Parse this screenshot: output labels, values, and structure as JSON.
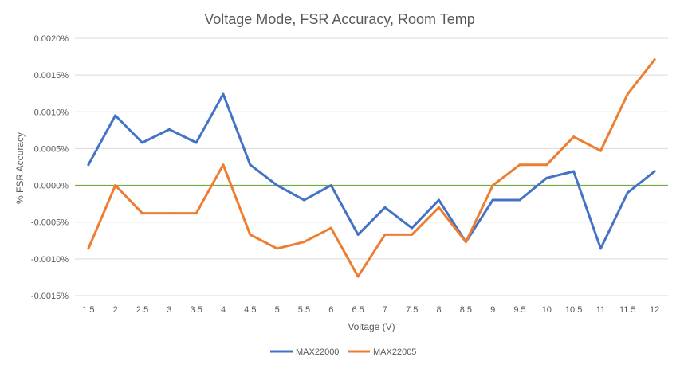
{
  "chart_data": {
    "type": "line",
    "title": "Voltage Mode, FSR Accuracy, Room Temp",
    "xlabel": "Voltage (V)",
    "ylabel": "% FSR Accuracy",
    "categories": [
      "1.5",
      "2",
      "2.5",
      "3",
      "3.5",
      "4",
      "4.5",
      "5",
      "5.5",
      "6",
      "6.5",
      "7",
      "7.5",
      "8",
      "8.5",
      "9",
      "9.5",
      "10",
      "10.5",
      "11",
      "11.5",
      "12"
    ],
    "ylim": [
      -0.0015,
      0.002
    ],
    "yticks": [
      -0.0015,
      -0.001,
      -0.0005,
      0,
      0.0005,
      0.001,
      0.0015,
      0.002
    ],
    "ytick_labels": [
      "-0.0015%",
      "-0.0010%",
      "-0.0005%",
      "0.0000%",
      "0.0005%",
      "0.0010%",
      "0.0015%",
      "0.0020%"
    ],
    "grid": true,
    "legend_position": "bottom",
    "reference_line": {
      "value": 0,
      "color": "#70ad47"
    },
    "series": [
      {
        "name": "MAX22000",
        "color": "#4472c4",
        "values": [
          0.00028,
          0.00095,
          0.00058,
          0.00076,
          0.00058,
          0.00124,
          0.00028,
          0.0,
          -0.0002,
          0.0,
          -0.00067,
          -0.0003,
          -0.00058,
          -0.0002,
          -0.00077,
          -0.0002,
          -0.0002,
          0.0001,
          0.00019,
          -0.00086,
          -0.0001,
          0.00019
        ]
      },
      {
        "name": "MAX22005",
        "color": "#ed7d31",
        "values": [
          -0.00086,
          0.0,
          -0.00038,
          -0.00038,
          -0.00038,
          0.00028,
          -0.00067,
          -0.00086,
          -0.00077,
          -0.00058,
          -0.00124,
          -0.00067,
          -0.00067,
          -0.0003,
          -0.00077,
          0.0,
          0.00028,
          0.00028,
          0.00066,
          0.00047,
          0.00124,
          0.00171
        ]
      }
    ]
  }
}
